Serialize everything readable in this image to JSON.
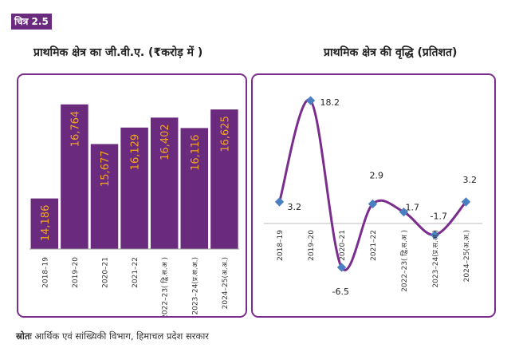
{
  "figure_label": "चित्र 2.5",
  "source_label": "स्रोतः",
  "source_text": "आर्थिक एवं सांख्यिकी विभाग, हिमाचल प्रदेश सरकार",
  "colors": {
    "bar": "#6a2a7d",
    "bar_label": "#f2a51f",
    "line": "#7b2d8e",
    "marker": "#4a7fc1",
    "border": "#7b2d8e"
  },
  "chart_data": [
    {
      "type": "bar",
      "title": "प्राथमिक क्षेत्र का जी.वी.ए. (₹करोड़ में )",
      "categories": [
        "2018–19",
        "2019–20",
        "2020–21",
        "2021–22",
        "2022–23( द्वि.स.अ )",
        "2023–24(प्र.स.अ.)",
        "2024–25(अ.अ.)"
      ],
      "values": [
        14186,
        16764,
        15677,
        16129,
        16402,
        16116,
        16625
      ],
      "value_labels": [
        "14,186",
        "16,764",
        "15,677",
        "16,129",
        "16,402",
        "16,116",
        "16,625"
      ],
      "ylim": [
        12800,
        17000
      ],
      "grid": false,
      "legend": "none"
    },
    {
      "type": "line",
      "title": "प्राथमिक क्षेत्र की वृद्धि (प्रतिशत)",
      "categories": [
        "2018–19",
        "2019–20",
        "2020–21",
        "2021–22",
        "2022–23( द्वि.स.अ )",
        "2023–24(प्र.स.अ.)",
        "2024–25(अ.अ.)"
      ],
      "values": [
        3.2,
        18.2,
        -6.5,
        2.9,
        1.7,
        -1.7,
        3.2
      ],
      "value_labels": [
        "3.2",
        "18.2",
        "-6.5",
        "2.9",
        "1.7",
        "-1.7",
        "3.2"
      ],
      "ylim": [
        -9,
        20
      ],
      "smooth": true,
      "grid": false,
      "legend": "none"
    }
  ]
}
